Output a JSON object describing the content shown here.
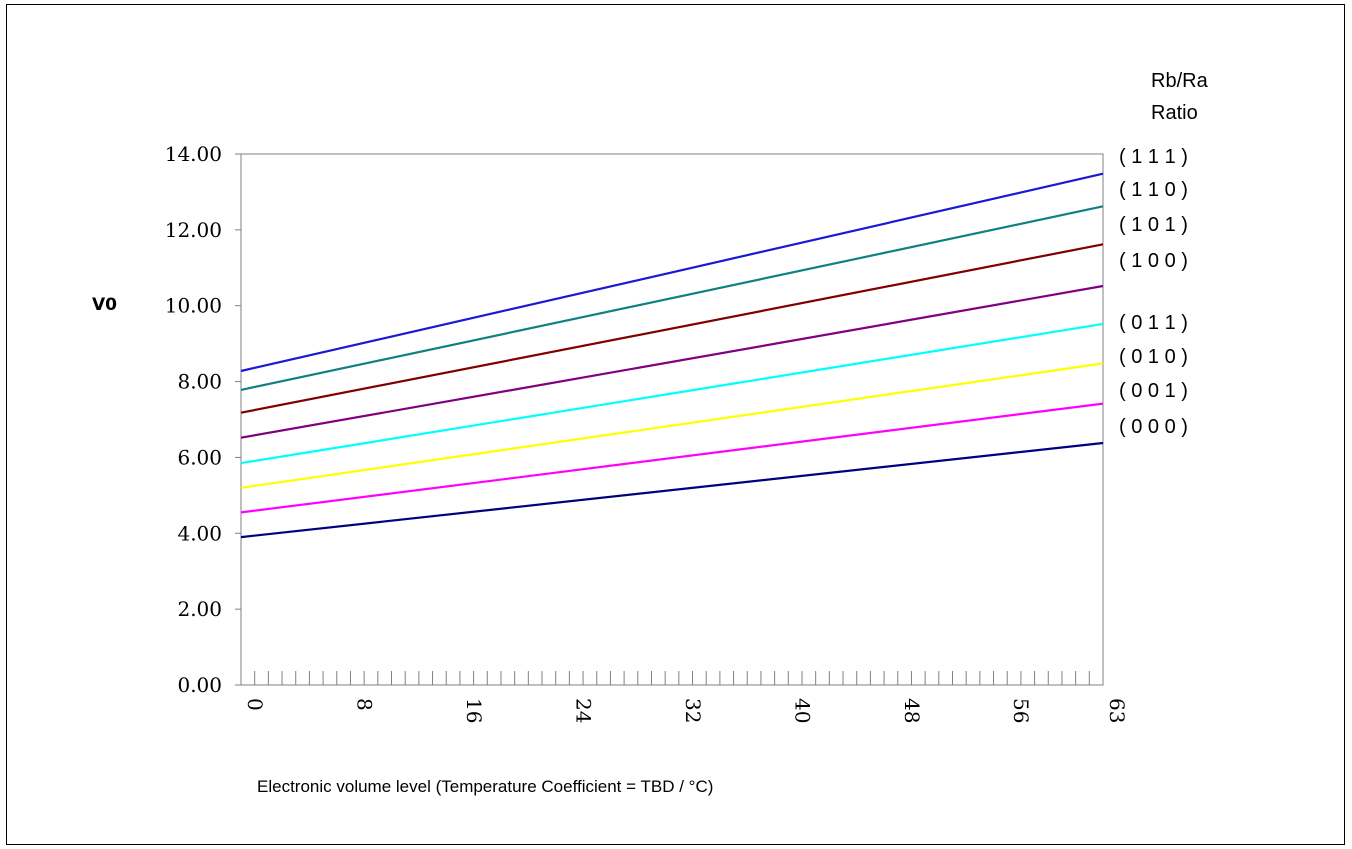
{
  "chart_data": {
    "type": "line",
    "title": "",
    "xlabel": "Electronic volume level (Temperature Coefficient = TBD / °C)",
    "ylabel": "V0",
    "xlim": [
      0,
      63
    ],
    "ylim": [
      0,
      14
    ],
    "x_ticks": [
      0,
      8,
      16,
      24,
      32,
      40,
      48,
      56,
      63
    ],
    "x_tick_labels": [
      "0",
      "8",
      "16",
      "24",
      "32",
      "40",
      "48",
      "56",
      "63"
    ],
    "y_ticks": [
      0,
      2,
      4,
      6,
      8,
      10,
      12,
      14
    ],
    "y_tick_labels": [
      "0.00",
      "2.00",
      "4.00",
      "6.00",
      "8.00",
      "10.00",
      "12.00",
      "14.00"
    ],
    "grid": false,
    "legend_title": [
      "Rb/Ra",
      "Ratio"
    ],
    "legend_placement": "right",
    "series": [
      {
        "name": "( 1 1 1 )",
        "color": "#1a1ad6",
        "x": [
          0,
          63
        ],
        "values": [
          8.28,
          13.48
        ]
      },
      {
        "name": "( 1 1 0 )",
        "color": "#108080",
        "x": [
          0,
          63
        ],
        "values": [
          7.78,
          12.62
        ]
      },
      {
        "name": "( 1 0 1 )",
        "color": "#800000",
        "x": [
          0,
          63
        ],
        "values": [
          7.18,
          11.62
        ]
      },
      {
        "name": "( 1 0 0 )",
        "color": "#800080",
        "x": [
          0,
          63
        ],
        "values": [
          6.52,
          10.52
        ]
      },
      {
        "name": "( 0 1 1 )",
        "color": "#00ffff",
        "x": [
          0,
          63
        ],
        "values": [
          5.85,
          9.52
        ]
      },
      {
        "name": "( 0 1 0 )",
        "color": "#ffff00",
        "x": [
          0,
          63
        ],
        "values": [
          5.2,
          8.48
        ]
      },
      {
        "name": "( 0 0 1 )",
        "color": "#ff00ff",
        "x": [
          0,
          63
        ],
        "values": [
          4.55,
          7.42
        ]
      },
      {
        "name": "( 0 0 0 )",
        "color": "#000080",
        "x": [
          0,
          63
        ],
        "values": [
          3.9,
          6.38
        ]
      }
    ]
  }
}
